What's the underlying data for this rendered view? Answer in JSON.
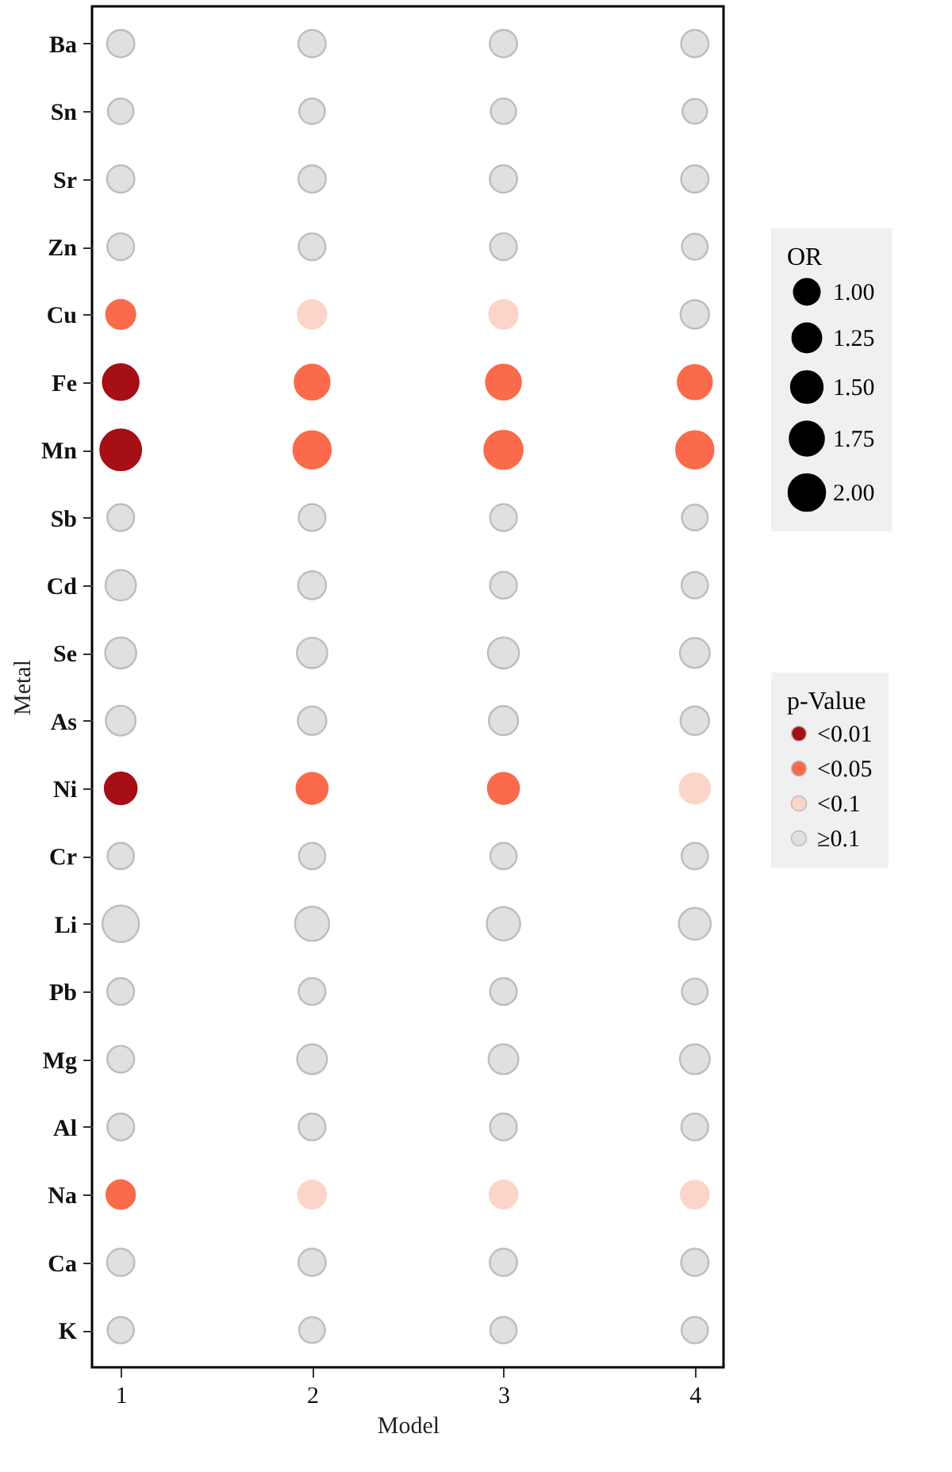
{
  "chart_data": {
    "type": "bubble",
    "orientation": "horizontal",
    "xlabel": "Model",
    "ylabel": "Metal",
    "legend_title": [
      "OR",
      "p-Value"
    ],
    "legend": "right",
    "marker": "circle",
    "categories": [
      "Ba",
      "Sn",
      "Sr",
      "Zn",
      "Cu",
      "Fe",
      "Mn",
      "Sb",
      "Cd",
      "Se",
      "As",
      "Ni",
      "Cr",
      "Li",
      "Pb",
      "Mg",
      "Al",
      "Na",
      "Ca",
      "K"
    ],
    "xlim": [
      0.85,
      4.15
    ],
    "xticks": [
      1,
      2,
      3,
      4
    ],
    "size_legend": [
      {
        "value": 1,
        "label": "1.00"
      },
      1.25,
      {
        "value": 1.5,
        "label": "1.50"
      },
      1.75,
      {
        "value": 2,
        "label": "2.00"
      }
    ],
    "series": [
      {
        "name": "<0.01",
        "color": "#a50f15",
        "values": [
          null,
          null,
          null,
          null,
          null,
          1,
          1,
          null,
          null,
          null,
          null,
          1,
          null,
          null,
          null,
          null,
          null,
          null,
          null,
          null
        ],
        "sizes": [
          null,
          null,
          null,
          null,
          null,
          1.91,
          2.49,
          null,
          null,
          null,
          null,
          1.52,
          null,
          null,
          null,
          null,
          null,
          null,
          null,
          null
        ]
      },
      {
        "name": "<0.05",
        "color": "#fb6a4a",
        "values": [
          null,
          null,
          null,
          null,
          1,
          null,
          null,
          null,
          null,
          null,
          null,
          null,
          null,
          null,
          null,
          null,
          null,
          1,
          null,
          null
        ],
        "sizes": [
          null,
          null,
          null,
          null,
          1.27,
          null,
          null,
          null,
          null,
          null,
          null,
          null,
          null,
          null,
          null,
          null,
          null,
          1.22,
          null,
          null
        ]
      },
      {
        "color": "#fb6a4a",
        "values": [
          null,
          null,
          null,
          null,
          null,
          2,
          2,
          null,
          null,
          null,
          null,
          2,
          null,
          null,
          null,
          null,
          null,
          null,
          null,
          null
        ],
        "sizes": [
          null,
          null,
          null,
          null,
          null,
          1.83,
          2.09,
          null,
          null,
          null,
          null,
          1.45,
          null,
          null,
          null,
          null,
          null,
          null,
          null,
          null
        ]
      },
      {
        "color": "#fb6a4a",
        "values": [
          null,
          null,
          null,
          null,
          null,
          3,
          3,
          null,
          null,
          null,
          null,
          3,
          null,
          null,
          null,
          null,
          null,
          null,
          null,
          null
        ],
        "sizes": [
          null,
          null,
          null,
          null,
          null,
          1.83,
          2.19,
          null,
          null,
          null,
          null,
          1.45,
          null,
          null,
          null,
          null,
          null,
          null,
          null,
          null
        ]
      },
      {
        "color": "#fb6a4a",
        "values": [
          null,
          null,
          null,
          null,
          null,
          4,
          4,
          null,
          null,
          null,
          null,
          null,
          null,
          null,
          null,
          null,
          null,
          null,
          null,
          null
        ],
        "sizes": [
          null,
          null,
          null,
          null,
          null,
          1.75,
          2.09,
          null,
          null,
          null,
          null,
          null,
          null,
          null,
          null,
          null,
          null,
          null,
          null,
          null
        ]
      },
      {
        "name": "<0.1",
        "color": "#fcd5c8",
        "values": [
          null,
          null,
          null,
          null,
          2,
          null,
          null,
          null,
          null,
          null,
          null,
          null,
          null,
          null,
          null,
          null,
          null,
          2,
          null,
          null
        ],
        "sizes": [
          null,
          null,
          null,
          null,
          1.22,
          null,
          null,
          null,
          null,
          null,
          null,
          null,
          null,
          null,
          null,
          null,
          null,
          1.17,
          null,
          null
        ]
      },
      {
        "color": "#fcd5c8",
        "values": [
          null,
          null,
          null,
          null,
          3,
          null,
          null,
          null,
          null,
          null,
          null,
          null,
          null,
          null,
          null,
          null,
          null,
          3,
          null,
          null
        ],
        "sizes": [
          null,
          null,
          null,
          null,
          1.22,
          null,
          null,
          null,
          null,
          null,
          null,
          null,
          null,
          null,
          null,
          null,
          null,
          1.17,
          null,
          null
        ]
      },
      {
        "color": "#fcd5c8",
        "values": [
          null,
          null,
          null,
          null,
          null,
          null,
          null,
          null,
          null,
          null,
          null,
          4,
          null,
          null,
          null,
          null,
          null,
          4,
          null,
          null
        ],
        "sizes": [
          null,
          null,
          null,
          null,
          null,
          null,
          null,
          null,
          null,
          null,
          null,
          1.39,
          null,
          null,
          null,
          null,
          null,
          1.17,
          null,
          null
        ]
      },
      {
        "name": "≥0.1",
        "color": "#e0e0e0",
        "values": [
          1,
          1,
          1,
          1,
          null,
          null,
          null,
          1,
          1,
          1,
          1,
          null,
          1,
          1,
          1,
          1,
          1,
          null,
          1,
          1
        ],
        "sizes": [
          1.12,
          0.98,
          1.12,
          1.08,
          null,
          null,
          null,
          1.08,
          1.39,
          1.45,
          1.33,
          null,
          1.04,
          2.0,
          1.08,
          1.08,
          1.08,
          null,
          1.12,
          1.04
        ]
      },
      {
        "color": "#e0e0e0",
        "values": [
          2,
          2,
          2,
          2,
          null,
          null,
          null,
          2,
          2,
          2,
          2,
          null,
          2,
          2,
          2,
          2,
          2,
          null,
          2,
          2
        ],
        "sizes": [
          1.12,
          0.98,
          1.12,
          1.08,
          null,
          null,
          null,
          1.08,
          1.17,
          1.39,
          1.22,
          null,
          1.04,
          1.75,
          1.08,
          1.33,
          1.08,
          null,
          1.12,
          1.0
        ]
      },
      {
        "color": "#e0e0e0",
        "values": [
          3,
          3,
          3,
          3,
          null,
          null,
          null,
          3,
          3,
          3,
          3,
          null,
          3,
          3,
          3,
          3,
          3,
          null,
          3,
          3
        ],
        "sizes": [
          1.12,
          0.97,
          1.12,
          1.08,
          null,
          null,
          null,
          1.08,
          1.08,
          1.45,
          1.27,
          null,
          1.04,
          1.67,
          1.08,
          1.33,
          1.08,
          null,
          1.12,
          1.04
        ]
      },
      {
        "color": "#e0e0e0",
        "values": [
          4,
          4,
          4,
          4,
          4,
          null,
          null,
          4,
          4,
          4,
          4,
          null,
          4,
          4,
          4,
          4,
          4,
          null,
          4,
          4
        ],
        "sizes": [
          1.12,
          0.91,
          1.12,
          1.0,
          1.22,
          null,
          null,
          1.0,
          1.04,
          1.33,
          1.22,
          null,
          1.04,
          1.52,
          1.0,
          1.33,
          1.08,
          null,
          1.12,
          1.04
        ]
      }
    ]
  }
}
